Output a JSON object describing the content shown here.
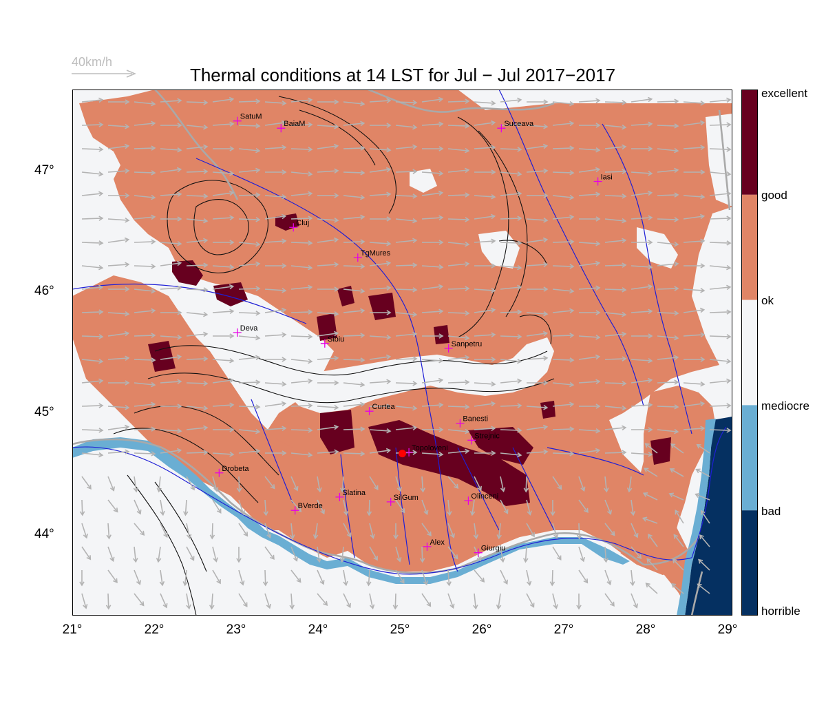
{
  "title": "Thermal conditions at 14 LST for Jul − Jul  2017−2017",
  "wind_reference": {
    "label": "40km/h"
  },
  "latitude_labels": [
    "47°",
    "46°",
    "45°",
    "44°"
  ],
  "longitude_labels": [
    "21°",
    "22°",
    "23°",
    "24°",
    "25°",
    "26°",
    "27°",
    "28°",
    "29°"
  ],
  "colorbar": {
    "labels": [
      "excellent",
      "good",
      "ok",
      "mediocre",
      "bad",
      "horrible"
    ],
    "colors": [
      "#67001f",
      "#e08566",
      "#f4f5f7",
      "#6aaed3",
      "#053061"
    ]
  },
  "map_colors": {
    "excellent": "#67001f",
    "ok": "#e08566",
    "mediocre": "#f4f5f7",
    "bad": "#6aaed3",
    "horrible": "#053061",
    "rivers": "#1f1fd6",
    "borders": "#a9a9a9",
    "contours": "#111111",
    "wind_vectors": "#b3b3b3",
    "city_marker": "#e600e6",
    "site_marker": "#ff0000"
  },
  "cities": [
    {
      "name": "SatuM",
      "lon": 23.0,
      "lat": 47.44
    },
    {
      "name": "BaiaM",
      "lon": 23.53,
      "lat": 47.38
    },
    {
      "name": "Suceava",
      "lon": 26.2,
      "lat": 47.38
    },
    {
      "name": "Iasi",
      "lon": 27.37,
      "lat": 46.94
    },
    {
      "name": "Cluj",
      "lon": 23.68,
      "lat": 46.56
    },
    {
      "name": "TgMures",
      "lon": 24.46,
      "lat": 46.31
    },
    {
      "name": "Deva",
      "lon": 23.0,
      "lat": 45.69
    },
    {
      "name": "Sibiu",
      "lon": 24.06,
      "lat": 45.6
    },
    {
      "name": "Sanpetru",
      "lon": 25.56,
      "lat": 45.56
    },
    {
      "name": "Curtea",
      "lon": 24.6,
      "lat": 45.04
    },
    {
      "name": "Banesti",
      "lon": 25.7,
      "lat": 44.94
    },
    {
      "name": "Strejnic",
      "lon": 25.84,
      "lat": 44.8
    },
    {
      "name": "Topoloveni",
      "lon": 25.08,
      "lat": 44.7
    },
    {
      "name": "Drobeta",
      "lon": 22.78,
      "lat": 44.53
    },
    {
      "name": "Slatina",
      "lon": 24.24,
      "lat": 44.33
    },
    {
      "name": "SilGum",
      "lon": 24.86,
      "lat": 44.29
    },
    {
      "name": "Olinceni",
      "lon": 25.8,
      "lat": 44.3
    },
    {
      "name": "BVerde",
      "lon": 23.7,
      "lat": 44.22
    },
    {
      "name": "Alex",
      "lon": 25.3,
      "lat": 43.92
    },
    {
      "name": "Giurgiu",
      "lon": 25.92,
      "lat": 43.87
    }
  ],
  "site": {
    "name": "Topoloveni",
    "lon": 25.0,
    "lat": 44.69
  }
}
